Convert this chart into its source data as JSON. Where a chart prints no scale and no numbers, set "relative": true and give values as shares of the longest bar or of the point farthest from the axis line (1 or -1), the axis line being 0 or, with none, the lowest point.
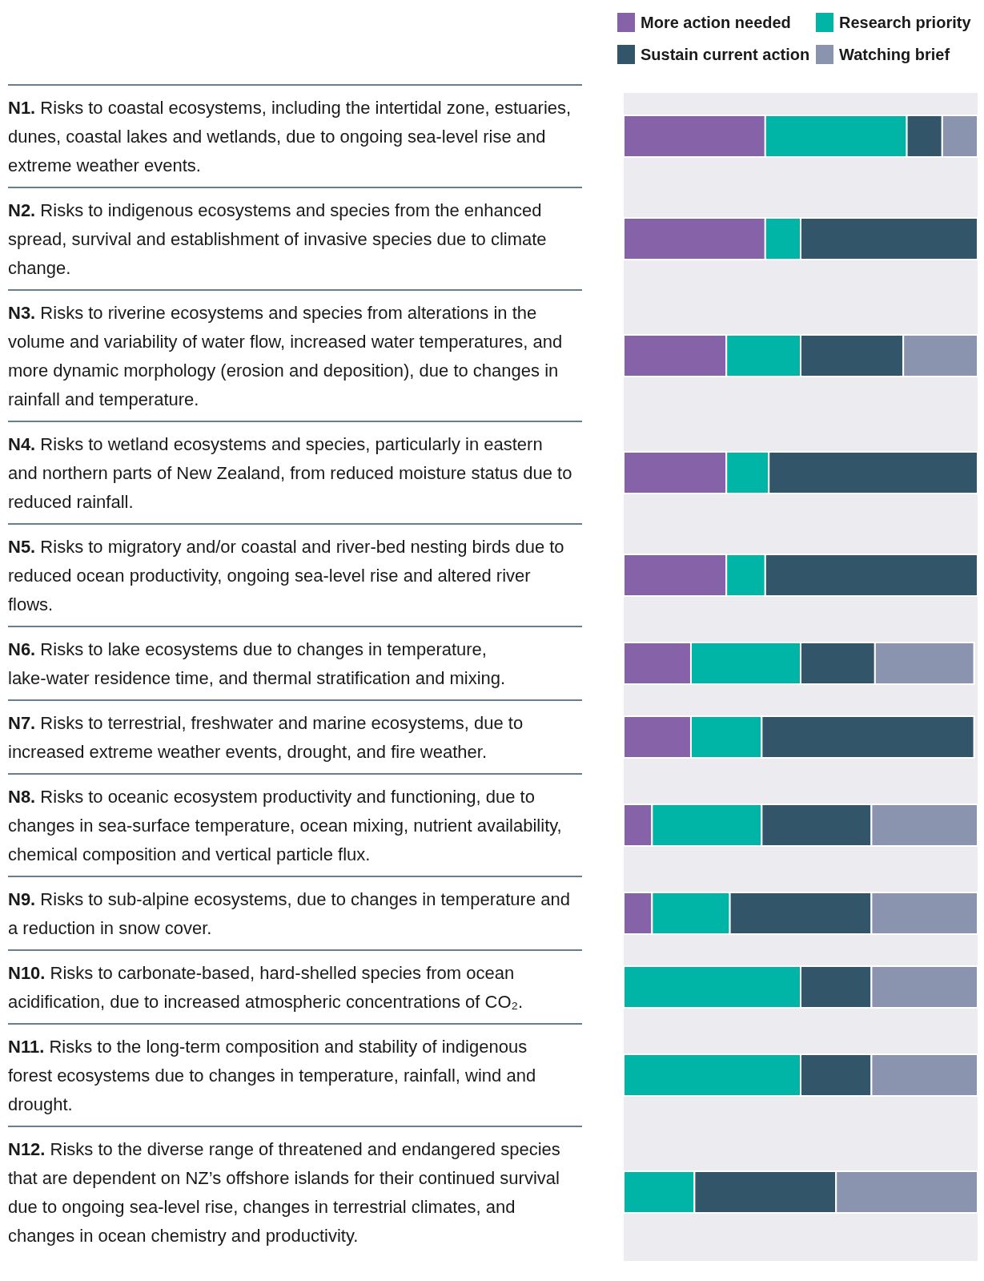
{
  "chart_data": {
    "type": "bar",
    "orientation": "horizontal",
    "stacked": true,
    "relative": true,
    "legend": "top right",
    "categories": [
      "N1. Risks to coastal ecosystems, including the intertidal zone, estuaries, dunes, coastal lakes and wetlands, due to ongoing sea-level rise and extreme weather events.",
      "N2. Risks to indigenous ecosystems and species from the enhanced spread, survival and establishment of invasive species due to climate change.",
      "N3. Risks to riverine ecosystems and species from alterations in the volume and variability of water flow, increased water temperatures, and more dynamic morphology (erosion and deposition), due to changes in rainfall and temperature.",
      "N4. Risks to wetland ecosystems and species, particularly in eastern and northern parts of New Zealand, from reduced moisture status due to reduced rainfall.",
      "N5. Risks to migratory and/or coastal and river-bed nesting birds due to reduced ocean productivity, ongoing sea-level rise and altered river flows.",
      "N6. Risks to lake ecosystems due to changes in temperature, lake-water residence time, and thermal stratification and mixing.",
      "N7. Risks to terrestrial, freshwater and marine ecosystems, due to increased extreme weather events, drought, and fire weather.",
      "N8. Risks to oceanic ecosystem productivity and functioning, due to changes in sea-surface temperature, ocean mixing, nutrient availability, chemical composition and vertical particle flux.",
      "N9. Risks to sub-alpine ecosystems, due to changes in temperature and a reduction in snow cover.",
      "N10. Risks to carbonate-based, hard-shelled species from ocean acidification, due to increased atmospheric concentrations of CO₂.",
      "N11. Risks to the long-term composition and stability of indigenous forest ecosystems due to changes in temperature, rainfall, wind and drought.",
      "N12. Risks to the diverse range of threatened and endangered species that are dependent on NZ’s offshore islands for their continued survival due to ongoing sea-level rise, changes in terrestrial climates, and changes in ocean chemistry and productivity."
    ],
    "series": [
      {
        "name": "More action needed",
        "color": "#8663a8",
        "values": [
          0.4,
          0.4,
          0.29,
          0.29,
          0.29,
          0.19,
          0.19,
          0.08,
          0.08,
          0,
          0,
          0
        ]
      },
      {
        "name": "Research priority",
        "color": "#00b5a5",
        "values": [
          0.4,
          0.1,
          0.21,
          0.12,
          0.11,
          0.31,
          0.2,
          0.31,
          0.22,
          0.5,
          0.5,
          0.2
        ]
      },
      {
        "name": "Sustain current action",
        "color": "#33556a",
        "values": [
          0.1,
          0.5,
          0.29,
          0.59,
          0.6,
          0.21,
          0.6,
          0.31,
          0.4,
          0.2,
          0.2,
          0.4
        ]
      },
      {
        "name": "Watching brief",
        "color": "#8a94ae",
        "values": [
          0.1,
          0,
          0.21,
          0,
          0,
          0.28,
          0,
          0.3,
          0.3,
          0.3,
          0.3,
          0.4
        ]
      }
    ]
  }
}
